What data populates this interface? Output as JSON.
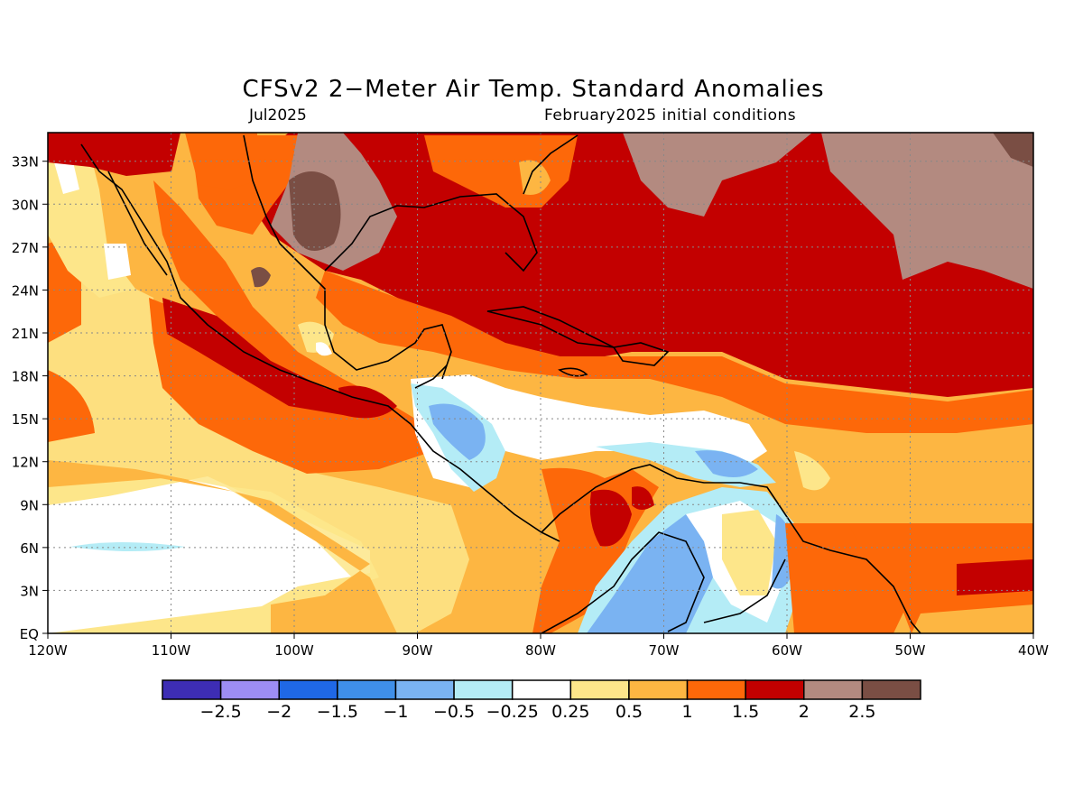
{
  "header": {
    "title": "CFSv2 2−Meter Air Temp. Standard Anomalies",
    "valid": "Jul2025",
    "initial": "February2025 initial conditions"
  },
  "map": {
    "lon_range": [
      -120,
      -40
    ],
    "lat_range": [
      0,
      35
    ],
    "lon_ticks": [
      "120W",
      "110W",
      "100W",
      "90W",
      "80W",
      "70W",
      "60W",
      "50W",
      "40W"
    ],
    "lat_ticks": [
      "EQ",
      "3N",
      "6N",
      "9N",
      "12N",
      "15N",
      "18N",
      "21N",
      "24N",
      "27N",
      "30N",
      "33N"
    ],
    "grid": true
  },
  "colorbar": {
    "colors": [
      "#3d2db4",
      "#9d8df4",
      "#1f68e6",
      "#3f8fe9",
      "#7ab3f2",
      "#b4ecf6",
      "#ffffff",
      "#fde68a",
      "#fdb642",
      "#fd6809",
      "#c30000",
      "#b38a80",
      "#7a4e44"
    ],
    "labels": [
      "−2.5",
      "−2",
      "−1.5",
      "−1",
      "−0.5",
      "−0.25",
      "0.25",
      "0.5",
      "1",
      "1.5",
      "2",
      "2.5"
    ]
  }
}
